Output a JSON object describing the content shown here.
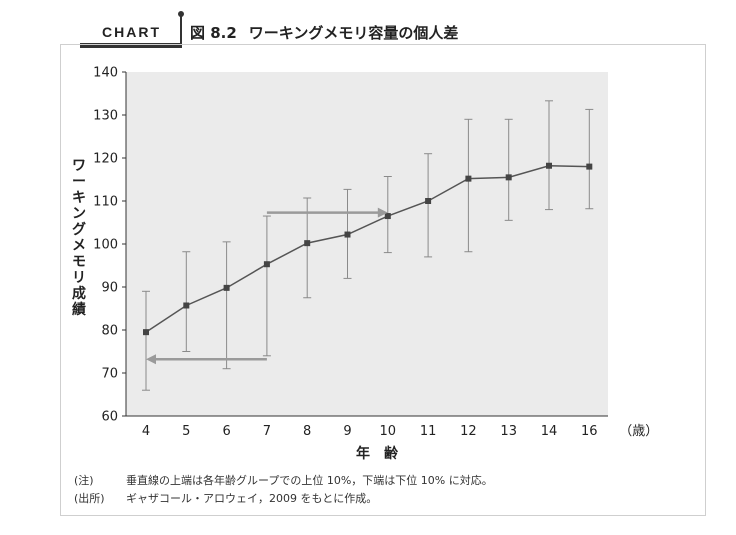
{
  "header": {
    "tag": "CHART",
    "figure_number": "図 8.2",
    "figure_title": "ワーキングメモリ容量の個人差"
  },
  "notes": [
    {
      "label": "(注)",
      "text": "垂直線の上端は各年齢グループでの上位 10%，下端は下位 10% に対応。"
    },
    {
      "label": "(出所)",
      "text": "ギャザコール・アロウェイ，2009 をもとに作成。"
    }
  ],
  "chart_data": {
    "type": "line",
    "title": "",
    "xlabel": "年　齢",
    "x_unit": "（歳）",
    "ylabel": "ワーキングメモリ成績",
    "categories": [
      "4",
      "5",
      "6",
      "7",
      "8",
      "9",
      "10",
      "11",
      "12",
      "13",
      "14",
      "16"
    ],
    "series": [
      {
        "values": [
          79.5,
          85.7,
          89.8,
          95.3,
          100.2,
          102.2,
          106.5,
          110.0,
          115.2,
          115.5,
          118.2,
          118.0
        ],
        "upper": [
          89.0,
          98.2,
          100.5,
          106.5,
          110.7,
          112.7,
          115.7,
          121.0,
          129.0,
          129.0,
          133.3,
          131.3
        ],
        "lower": [
          66.0,
          75.0,
          71.0,
          74.0,
          87.5,
          92.0,
          98.0,
          97.0,
          98.2,
          105.5,
          108.0,
          108.2
        ]
      }
    ],
    "ylim": [
      60,
      140
    ],
    "yticks": [
      60,
      70,
      80,
      90,
      100,
      110,
      120,
      130,
      140
    ],
    "grid": false,
    "annotations": [
      {
        "type": "arrow",
        "from": {
          "x": "7",
          "y": 107.3
        },
        "to": {
          "x": "10",
          "y": 107.3
        }
      },
      {
        "type": "arrow",
        "from": {
          "x": "7",
          "y": 73.2
        },
        "to": {
          "x": "4",
          "y": 73.2
        }
      }
    ],
    "colors": {
      "line": "#555555",
      "marker": "#444444",
      "errorbar": "#8a8a8a",
      "arrow": "#9a9a9a",
      "plot_bg": "#ebebeb"
    }
  }
}
